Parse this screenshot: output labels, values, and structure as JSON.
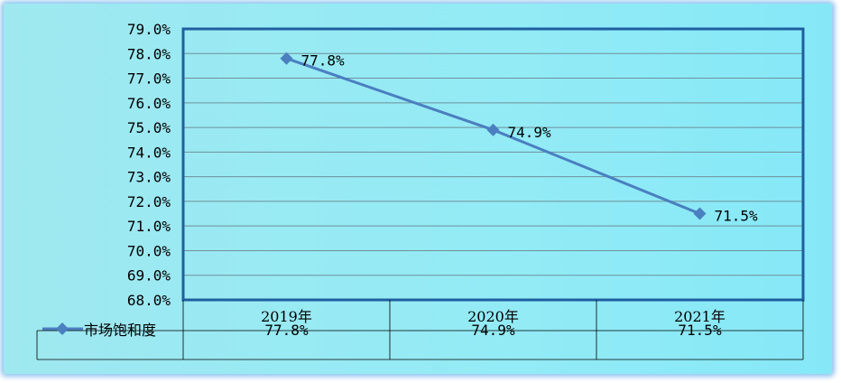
{
  "chart_data": {
    "type": "line",
    "categories": [
      "2019年",
      "2020年",
      "2021年"
    ],
    "series": [
      {
        "name": "市场饱和度",
        "values": [
          77.8,
          74.9,
          71.5
        ],
        "color": "#4a7fc0"
      }
    ],
    "data_labels": [
      "77.8%",
      "74.9%",
      "71.5%"
    ],
    "y_ticks": [
      "79.0%",
      "78.0%",
      "77.0%",
      "76.0%",
      "75.0%",
      "74.0%",
      "73.0%",
      "72.0%",
      "71.0%",
      "70.0%",
      "69.0%",
      "68.0%"
    ],
    "ylim": [
      68.0,
      79.0
    ],
    "grid": true,
    "data_table": {
      "row_label": "市场饱和度",
      "values": [
        "77.8%",
        "74.9%",
        "71.5%"
      ]
    },
    "colors": {
      "background": "#93ebf5",
      "line": "#4a7fc0",
      "plot_border": "#1f5fa0"
    }
  }
}
